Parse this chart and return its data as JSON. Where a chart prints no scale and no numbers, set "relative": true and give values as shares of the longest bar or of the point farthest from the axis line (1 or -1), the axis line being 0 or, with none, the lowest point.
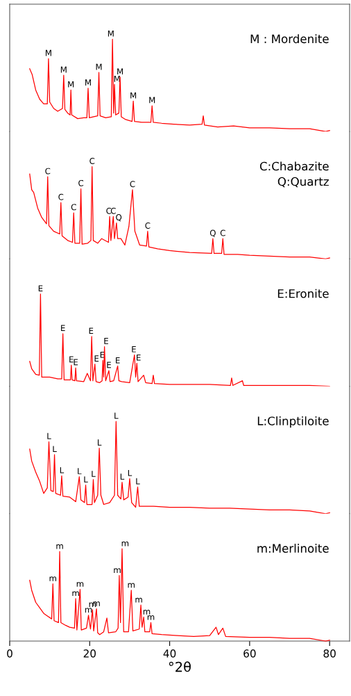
{
  "chart_data": [
    {
      "type": "line",
      "relative": true,
      "xlim": [
        0,
        85
      ],
      "xticks": [
        0,
        20,
        40,
        60,
        80
      ],
      "tick_labels": false,
      "marker": "none",
      "line_style": "solid",
      "series": [
        {
          "color": "#ff0000",
          "x": [
            5.0,
            5.6,
            6.5,
            7.5,
            8.5,
            9.4,
            9.7,
            10.0,
            11,
            12,
            13.2,
            13.5,
            13.8,
            14.5,
            15.1,
            15.3,
            15.5,
            17,
            18.5,
            19.3,
            19.6,
            19.9,
            21,
            22.0,
            22.3,
            22.6,
            24,
            25.4,
            25.7,
            26.0,
            26.2,
            26.5,
            27.3,
            27.6,
            27.9,
            29,
            30.6,
            30.9,
            31.2,
            33,
            35.3,
            35.6,
            35.9,
            38,
            41,
            45,
            48.1,
            48.4,
            48.7,
            52,
            56,
            60,
            65,
            70,
            75,
            79,
            80
          ],
          "values": [
            0.68,
            0.62,
            0.45,
            0.35,
            0.3,
            0.3,
            0.79,
            0.32,
            0.25,
            0.22,
            0.25,
            0.61,
            0.24,
            0.2,
            0.18,
            0.45,
            0.18,
            0.14,
            0.15,
            0.15,
            0.47,
            0.15,
            0.16,
            0.17,
            0.64,
            0.17,
            0.15,
            0.16,
            1.0,
            0.2,
            0.51,
            0.18,
            0.2,
            0.59,
            0.16,
            0.13,
            0.11,
            0.33,
            0.11,
            0.1,
            0.1,
            0.28,
            0.1,
            0.09,
            0.08,
            0.07,
            0.08,
            0.17,
            0.07,
            0.05,
            0.06,
            0.04,
            0.04,
            0.03,
            0.03,
            0.0,
            0.01
          ]
        }
      ],
      "annotations": [
        "M : Mordenite",
        {
          "text": "M",
          "x": 9.7,
          "y": 0.79
        },
        {
          "text": "M",
          "x": 13.5,
          "y": 0.61
        },
        {
          "text": "M",
          "x": 15.3,
          "y": 0.45
        },
        {
          "text": "M",
          "x": 19.6,
          "y": 0.47
        },
        {
          "text": "M",
          "x": 22.3,
          "y": 0.64
        },
        {
          "text": "M",
          "x": 25.7,
          "y": 1.0
        },
        {
          "text": "M",
          "x": 26.2,
          "y": 0.51
        },
        {
          "text": "M",
          "x": 27.6,
          "y": 0.59
        },
        {
          "text": "M",
          "x": 30.9,
          "y": 0.33
        },
        {
          "text": "M",
          "x": 35.6,
          "y": 0.28
        }
      ]
    },
    {
      "type": "line",
      "relative": true,
      "xlim": [
        0,
        85
      ],
      "xticks": [
        0,
        20,
        40,
        60,
        80
      ],
      "tick_labels": false,
      "marker": "none",
      "line_style": "solid",
      "series": [
        {
          "color": "#ff0000",
          "x": [
            5.0,
            5.5,
            6,
            7,
            8,
            9.2,
            9.5,
            9.8,
            11,
            12.5,
            12.8,
            13.1,
            14.5,
            15.7,
            16.0,
            16.3,
            17.5,
            17.8,
            18.1,
            19.5,
            20.3,
            20.6,
            20.9,
            22,
            23,
            24.7,
            25.0,
            25.3,
            25.9,
            26.2,
            26.7,
            27.0,
            27.8,
            28.8,
            29.8,
            30.7,
            31.3,
            32.5,
            34.2,
            34.5,
            34.8,
            37,
            40,
            45,
            50.5,
            50.8,
            51.1,
            53.0,
            53.3,
            53.6,
            57,
            60,
            65,
            70,
            75,
            79,
            80
          ],
          "values": [
            0.92,
            0.75,
            0.72,
            0.55,
            0.45,
            0.38,
            0.89,
            0.36,
            0.3,
            0.27,
            0.61,
            0.25,
            0.2,
            0.18,
            0.5,
            0.17,
            0.17,
            0.76,
            0.16,
            0.17,
            0.2,
            1.0,
            0.2,
            0.17,
            0.22,
            0.18,
            0.46,
            0.2,
            0.46,
            0.22,
            0.39,
            0.22,
            0.22,
            0.15,
            0.35,
            0.75,
            0.3,
            0.15,
            0.14,
            0.3,
            0.13,
            0.11,
            0.09,
            0.07,
            0.06,
            0.22,
            0.06,
            0.06,
            0.22,
            0.05,
            0.05,
            0.04,
            0.03,
            0.02,
            0.02,
            0.0,
            0.01
          ]
        }
      ],
      "annotations": [
        "C:Chabazite",
        "Q:Quartz",
        {
          "text": "C",
          "x": 9.5,
          "y": 0.89
        },
        {
          "text": "C",
          "x": 12.8,
          "y": 0.61
        },
        {
          "text": "C",
          "x": 16.0,
          "y": 0.5
        },
        {
          "text": "C",
          "x": 17.8,
          "y": 0.76
        },
        {
          "text": "C",
          "x": 20.6,
          "y": 1.0
        },
        {
          "text": "C",
          "x": 25.0,
          "y": 0.46
        },
        {
          "text": "C",
          "x": 25.9,
          "y": 0.46
        },
        {
          "text": "Q",
          "x": 26.7,
          "y": 0.39
        },
        {
          "text": "C",
          "x": 30.7,
          "y": 0.75
        },
        {
          "text": "C",
          "x": 34.5,
          "y": 0.3
        },
        {
          "text": "Q",
          "x": 50.8,
          "y": 0.22
        },
        {
          "text": "C",
          "x": 53.3,
          "y": 0.22
        }
      ]
    },
    {
      "type": "line",
      "relative": true,
      "xlim": [
        0,
        85
      ],
      "xticks": [
        0,
        20,
        40,
        60,
        80
      ],
      "tick_labels": false,
      "marker": "none",
      "line_style": "solid",
      "series": [
        {
          "color": "#ff0000",
          "x": [
            5.0,
            5.5,
            6.5,
            7.4,
            7.7,
            8.0,
            10,
            12,
            13.0,
            13.3,
            13.6,
            15.2,
            15.4,
            15.6,
            16.3,
            16.5,
            16.7,
            18.5,
            19.4,
            20.2,
            20.5,
            20.8,
            21.3,
            21.6,
            22.5,
            23.1,
            23.3,
            23.5,
            23.7,
            24.0,
            24.8,
            25.1,
            26,
            27.0,
            27.3,
            28,
            30,
            31.2,
            31.5,
            31.8,
            32.1,
            33.5,
            34,
            35.6,
            35.9,
            36.2,
            40,
            45,
            50,
            55.2,
            55.5,
            55.8,
            58.2,
            58.5,
            65,
            70,
            75,
            80
          ],
          "values": [
            0.27,
            0.19,
            0.13,
            0.12,
            1.0,
            0.1,
            0.1,
            0.08,
            0.08,
            0.57,
            0.07,
            0.07,
            0.23,
            0.07,
            0.06,
            0.2,
            0.06,
            0.05,
            0.14,
            0.06,
            0.54,
            0.06,
            0.24,
            0.05,
            0.04,
            0.06,
            0.28,
            0.1,
            0.43,
            0.06,
            0.17,
            0.05,
            0.06,
            0.22,
            0.06,
            0.05,
            0.04,
            0.34,
            0.1,
            0.25,
            0.05,
            0.12,
            0.04,
            0.03,
            0.12,
            0.03,
            0.02,
            0.02,
            0.02,
            0.01,
            0.09,
            0.01,
            0.06,
            0.01,
            0.01,
            0.01,
            0.01,
            0.0
          ]
        }
      ],
      "annotations": [
        "E:Eronite",
        {
          "text": "E",
          "x": 7.7,
          "y": 1.0
        },
        {
          "text": "E",
          "x": 13.3,
          "y": 0.57
        },
        {
          "text": "E",
          "x": 15.4,
          "y": 0.23
        },
        {
          "text": "E",
          "x": 16.5,
          "y": 0.2
        },
        {
          "text": "E",
          "x": 20.5,
          "y": 0.54
        },
        {
          "text": "E",
          "x": 21.3,
          "y": 0.24
        },
        {
          "text": "E",
          "x": 23.3,
          "y": 0.28
        },
        {
          "text": "E",
          "x": 23.7,
          "y": 0.43
        },
        {
          "text": "E",
          "x": 24.8,
          "y": 0.17
        },
        {
          "text": "E",
          "x": 27.0,
          "y": 0.22
        },
        {
          "text": "E",
          "x": 31.2,
          "y": 0.34
        },
        {
          "text": "E",
          "x": 31.8,
          "y": 0.25
        }
      ]
    },
    {
      "type": "line",
      "relative": true,
      "xlim": [
        0,
        85
      ],
      "xticks": [
        0,
        20,
        40,
        60,
        80
      ],
      "tick_labels": false,
      "marker": "none",
      "line_style": "solid",
      "series": [
        {
          "color": "#ff0000",
          "x": [
            5.0,
            5.5,
            6.5,
            7.5,
            8.5,
            9.4,
            9.8,
            10.3,
            10.9,
            11.2,
            11.5,
            12.7,
            13.0,
            13.3,
            15,
            16.5,
            17.4,
            17.8,
            18.7,
            19.0,
            19.3,
            20.6,
            20.9,
            21.2,
            22.0,
            22.4,
            22.8,
            23.5,
            25,
            26.2,
            26.6,
            27.0,
            27.8,
            28.1,
            28.5,
            29.6,
            30.0,
            30.5,
            31.5,
            32.0,
            32.4,
            36,
            40,
            45,
            50,
            55,
            60,
            65,
            70,
            75,
            79,
            80
          ],
          "values": [
            0.7,
            0.57,
            0.45,
            0.35,
            0.22,
            0.28,
            0.78,
            0.25,
            0.24,
            0.64,
            0.22,
            0.2,
            0.41,
            0.19,
            0.18,
            0.13,
            0.4,
            0.15,
            0.12,
            0.31,
            0.1,
            0.1,
            0.37,
            0.12,
            0.2,
            0.71,
            0.2,
            0.1,
            0.12,
            0.2,
            1.0,
            0.2,
            0.16,
            0.34,
            0.15,
            0.18,
            0.38,
            0.12,
            0.07,
            0.29,
            0.08,
            0.08,
            0.07,
            0.07,
            0.06,
            0.06,
            0.05,
            0.04,
            0.04,
            0.03,
            0.0,
            0.01
          ]
        }
      ],
      "annotations": [
        "L:Clinptiloite",
        {
          "text": "L",
          "x": 9.8,
          "y": 0.78
        },
        {
          "text": "L",
          "x": 11.2,
          "y": 0.64
        },
        {
          "text": "L",
          "x": 13.0,
          "y": 0.41
        },
        {
          "text": "L",
          "x": 17.4,
          "y": 0.4
        },
        {
          "text": "L",
          "x": 19.0,
          "y": 0.31
        },
        {
          "text": "L",
          "x": 20.9,
          "y": 0.37
        },
        {
          "text": "L",
          "x": 22.4,
          "y": 0.71
        },
        {
          "text": "L",
          "x": 26.6,
          "y": 1.0
        },
        {
          "text": "L",
          "x": 28.1,
          "y": 0.34
        },
        {
          "text": "L",
          "x": 30.0,
          "y": 0.38
        },
        {
          "text": "L",
          "x": 32.0,
          "y": 0.29
        }
      ]
    },
    {
      "type": "line",
      "relative": true,
      "xlim": [
        0,
        85
      ],
      "xticks": [
        0,
        20,
        40,
        60,
        80
      ],
      "tick_labels": "x",
      "marker": "none",
      "line_style": "solid",
      "xlabel": "°2θ",
      "series": [
        {
          "color": "#ff0000",
          "x": [
            5.0,
            5.5,
            6.5,
            7.5,
            8.5,
            9.5,
            10.5,
            10.8,
            11.1,
            12.2,
            12.5,
            12.8,
            14,
            15,
            16.2,
            16.5,
            16.8,
            17.6,
            17.9,
            19.2,
            19.7,
            20.2,
            20.7,
            21.0,
            21.7,
            22.0,
            22.5,
            23.5,
            24.3,
            24.7,
            26.5,
            27.1,
            27.4,
            27.7,
            28.1,
            28.5,
            29.7,
            30.4,
            30.8,
            32.4,
            32.8,
            33.1,
            33.5,
            33.8,
            35.0,
            35.3,
            35.6,
            38,
            42,
            46,
            50,
            51.6,
            52.2,
            53.3,
            54,
            60,
            65,
            70,
            75,
            79,
            80
          ],
          "values": [
            0.66,
            0.55,
            0.42,
            0.36,
            0.3,
            0.27,
            0.24,
            0.62,
            0.22,
            0.2,
            0.97,
            0.2,
            0.17,
            0.15,
            0.14,
            0.46,
            0.12,
            0.56,
            0.12,
            0.14,
            0.28,
            0.13,
            0.34,
            0.11,
            0.35,
            0.09,
            0.07,
            0.1,
            0.25,
            0.09,
            0.1,
            0.14,
            0.71,
            0.2,
            1.0,
            0.1,
            0.1,
            0.55,
            0.11,
            0.13,
            0.39,
            0.15,
            0.26,
            0.1,
            0.1,
            0.2,
            0.08,
            0.07,
            0.06,
            0.05,
            0.06,
            0.15,
            0.07,
            0.14,
            0.05,
            0.04,
            0.04,
            0.03,
            0.03,
            0.0,
            0.01
          ]
        }
      ],
      "annotations": [
        "m:Merlinoite",
        {
          "text": "m",
          "x": 10.8,
          "y": 0.62
        },
        {
          "text": "m",
          "x": 12.5,
          "y": 0.97
        },
        {
          "text": "m",
          "x": 16.5,
          "y": 0.46
        },
        {
          "text": "m",
          "x": 17.6,
          "y": 0.56
        },
        {
          "text": "m",
          "x": 19.7,
          "y": 0.28
        },
        {
          "text": "m",
          "x": 20.7,
          "y": 0.34
        },
        {
          "text": "m",
          "x": 21.7,
          "y": 0.35
        },
        {
          "text": "m",
          "x": 27.4,
          "y": 0.71
        },
        {
          "text": "m",
          "x": 28.1,
          "y": 1.0
        },
        {
          "text": "m",
          "x": 30.4,
          "y": 0.55
        },
        {
          "text": "m",
          "x": 32.8,
          "y": 0.39
        },
        {
          "text": "m",
          "x": 33.5,
          "y": 0.26
        },
        {
          "text": "m",
          "x": 35.3,
          "y": 0.2
        }
      ]
    }
  ]
}
